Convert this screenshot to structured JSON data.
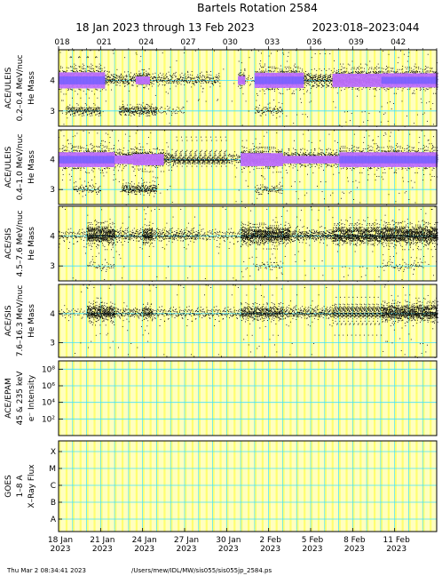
{
  "title": "Bartels Rotation 2584",
  "subtitle_left": "18 Jan 2023 through 13 Feb 2023",
  "subtitle_right": "2023:018–2023:044",
  "footer": {
    "timestamp": "Thu Mar  2 08:34:41 2023",
    "path": "/Users/mew/IDL/MW/sis055/sis055jp_2584.ps"
  },
  "colors": {
    "panel_bg": "#ffffc0",
    "stripe_yellow": "#ffff60",
    "grid_cyan": "#40e0ff",
    "dots": "#000000",
    "dense_core": "#c070ff",
    "core_center": "#7060ff"
  },
  "chart_data": {
    "type": "scatter",
    "x_axis": {
      "range": [
        18,
        45
      ],
      "unit": "day of year 2023",
      "top_tick_labels": [
        "018",
        "021",
        "024",
        "027",
        "030",
        "033",
        "036",
        "039",
        "042"
      ],
      "top_tick_values": [
        18,
        21,
        24,
        27,
        30,
        33,
        36,
        39,
        42
      ],
      "bottom_tick_labels": [
        {
          "date": "18 Jan",
          "year": "2023"
        },
        {
          "date": "21 Jan",
          "year": "2023"
        },
        {
          "date": "24 Jan",
          "year": "2023"
        },
        {
          "date": "27 Jan",
          "year": "2023"
        },
        {
          "date": "30 Jan",
          "year": "2023"
        },
        {
          "date": "2 Feb",
          "year": "2023"
        },
        {
          "date": "5 Feb",
          "year": "2023"
        },
        {
          "date": "8 Feb",
          "year": "2023"
        },
        {
          "date": "11 Feb",
          "year": "2023"
        }
      ]
    },
    "panels": [
      {
        "id": "uleis-low",
        "instrument": "ACE/ULEIS",
        "energy": "0.2–0.4 MeV/nuc",
        "quantity": "He Mass",
        "y_range": [
          2.5,
          5
        ],
        "y_ticks": [
          "3",
          "4"
        ],
        "y_tick_values": [
          3,
          4
        ],
        "band_activity": [
          [
            18,
            21.3,
            1.0
          ],
          [
            21.3,
            22,
            0.35
          ],
          [
            22,
            23.5,
            0.25
          ],
          [
            23.5,
            24.5,
            0.55
          ],
          [
            24.5,
            29.5,
            0.2
          ],
          [
            29.5,
            30.8,
            0.0
          ],
          [
            30.8,
            31.3,
            0.6
          ],
          [
            31.3,
            32,
            0.1
          ],
          [
            32,
            35.5,
            0.95
          ],
          [
            35.5,
            37.5,
            0.45
          ],
          [
            37.5,
            41,
            0.85
          ],
          [
            41,
            45,
            0.9
          ]
        ],
        "he3_activity": [
          [
            18.5,
            21,
            0.6
          ],
          [
            22.3,
            25,
            0.9
          ],
          [
            25,
            27,
            0.2
          ],
          [
            32,
            34,
            0.4
          ]
        ]
      },
      {
        "id": "uleis-high",
        "instrument": "ACE/ULEIS",
        "energy": "0.4–1.0 MeV/nuc",
        "quantity": "He Mass",
        "y_range": [
          2.5,
          5
        ],
        "y_ticks": [
          "3",
          "4"
        ],
        "y_tick_values": [
          3,
          4
        ],
        "band_activity": [
          [
            18,
            22,
            0.95
          ],
          [
            22,
            23.3,
            0.6
          ],
          [
            23.3,
            25.5,
            0.75
          ],
          [
            25.5,
            30,
            0.4
          ],
          [
            30,
            31,
            0.2
          ],
          [
            31,
            34,
            0.85
          ],
          [
            34,
            38,
            0.55
          ],
          [
            38,
            45,
            0.95
          ]
        ],
        "he3_activity": [
          [
            22.5,
            25,
            0.9
          ],
          [
            19,
            21,
            0.3
          ],
          [
            32,
            34,
            0.3
          ]
        ]
      },
      {
        "id": "sis-low",
        "instrument": "ACE/SIS",
        "energy": "4.5–7.6 MeV/nuc",
        "quantity": "He Mass",
        "y_range": [
          2.5,
          5
        ],
        "y_ticks": [
          "3",
          "4"
        ],
        "y_tick_values": [
          3,
          4
        ],
        "band_activity": [
          [
            18,
            20,
            0.15
          ],
          [
            20,
            22,
            1.0
          ],
          [
            22,
            24,
            0.3
          ],
          [
            24,
            24.7,
            0.9
          ],
          [
            24.7,
            28,
            0.25
          ],
          [
            28,
            31,
            0.15
          ],
          [
            31,
            34.5,
            0.9
          ],
          [
            34.5,
            37.5,
            0.35
          ],
          [
            37.5,
            41,
            0.85
          ],
          [
            41,
            45,
            1.0
          ]
        ],
        "he3_activity": [
          [
            20,
            22,
            0.2
          ],
          [
            32,
            34,
            0.2
          ],
          [
            41,
            44,
            0.15
          ]
        ]
      },
      {
        "id": "sis-high",
        "instrument": "ACE/SIS",
        "energy": "7.6–16.3 MeV/nuc",
        "quantity": "He Mass",
        "y_range": [
          2.5,
          5
        ],
        "y_ticks": [
          "3",
          "4"
        ],
        "y_tick_values": [
          3,
          4
        ],
        "band_activity": [
          [
            18,
            20,
            0.1
          ],
          [
            20,
            22,
            0.75
          ],
          [
            22,
            24,
            0.2
          ],
          [
            24,
            24.7,
            0.6
          ],
          [
            24.7,
            31,
            0.12
          ],
          [
            31,
            34,
            0.55
          ],
          [
            34,
            37.5,
            0.25
          ],
          [
            37.5,
            41,
            0.5
          ],
          [
            41,
            45,
            0.85
          ]
        ],
        "he3_activity": []
      },
      {
        "id": "epam",
        "instrument": "ACE/EPAM",
        "energy": "45 & 235 keV",
        "quantity": "e⁻ Intensity",
        "scale": "log",
        "y_range": [
          1,
          1000000000
        ],
        "y_ticks": [
          "10²",
          "10⁴",
          "10⁶",
          "10⁸"
        ],
        "y_tick_values": [
          100,
          10000,
          1000000,
          100000000
        ]
      },
      {
        "id": "goes",
        "instrument": "GOES",
        "energy": "1–8 A",
        "quantity": "X–Ray Flux",
        "y_range": [
          "A",
          "X"
        ],
        "y_ticks": [
          "A",
          "B",
          "C",
          "M",
          "X"
        ]
      }
    ]
  }
}
